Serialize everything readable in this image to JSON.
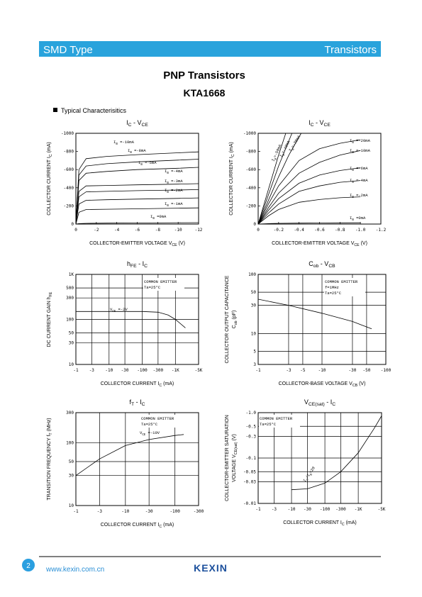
{
  "header": {
    "left": "SMD Type",
    "right": "Transistors"
  },
  "title": "PNP  Transistors",
  "part": "KTA1668",
  "section": "Typical  Characterisitics",
  "charts": [
    {
      "type": "line",
      "title": [
        "I",
        "C",
        "  -  V",
        "CE"
      ],
      "xlabel": [
        [
          "COLLECTOR-EMITTER VOLTAGE V",
          "CE",
          "   (V)"
        ]
      ],
      "ylabel": [
        [
          "COLLECTOR CURRENT I",
          "C",
          "   (mA)"
        ]
      ],
      "xlim": [
        0,
        -12
      ],
      "xticks": [
        0,
        -2,
        -4,
        -6,
        -8,
        -10,
        -12
      ],
      "ylim": [
        0,
        -1000
      ],
      "yticks": [
        0,
        -200,
        -400,
        -600,
        -800,
        -1000
      ],
      "series": [
        {
          "label": [
            "I",
            "B",
            "  =-10mA"
          ],
          "x": [
            0,
            -0.3,
            -1,
            -3,
            -6,
            -10,
            -12
          ],
          "y": [
            0,
            -600,
            -720,
            -745,
            -765,
            -785,
            -795
          ]
        },
        {
          "label": [
            "I",
            "B",
            "  =-8mA"
          ],
          "x": [
            0,
            -0.3,
            -1,
            -3,
            -6,
            -10,
            -12
          ],
          "y": [
            0,
            -540,
            -640,
            -665,
            -685,
            -705,
            -715
          ]
        },
        {
          "label": [
            "I",
            "B",
            "  =-6mA"
          ],
          "x": [
            0,
            -0.3,
            -1,
            -3,
            -6,
            -10,
            -12
          ],
          "y": [
            0,
            -480,
            -560,
            -580,
            -600,
            -615,
            -625
          ]
        },
        {
          "label": [
            "I",
            "B",
            "  =-4mA"
          ],
          "x": [
            0,
            -0.3,
            -1,
            -3,
            -6,
            -10,
            -12
          ],
          "y": [
            0,
            -360,
            -420,
            -425,
            -432,
            -440,
            -445
          ]
        },
        {
          "label": [
            "I",
            "B",
            "  =-3mA"
          ],
          "x": [
            0,
            -0.3,
            -1,
            -3,
            -6,
            -10,
            -12
          ],
          "y": [
            0,
            -300,
            -355,
            -360,
            -368,
            -375,
            -380
          ]
        },
        {
          "label": [
            "I",
            "B",
            "  =-2mA"
          ],
          "x": [
            0,
            -0.3,
            -1,
            -3,
            -6,
            -10,
            -12
          ],
          "y": [
            0,
            -220,
            -262,
            -268,
            -275,
            -283,
            -288
          ]
        },
        {
          "label": [
            "I",
            "B",
            "  =-1mA"
          ],
          "x": [
            0,
            -0.3,
            -1,
            -3,
            -6,
            -10,
            -12
          ],
          "y": [
            0,
            -130,
            -160,
            -163,
            -168,
            -175,
            -178
          ]
        },
        {
          "label": [
            "I",
            "B",
            "  =0mA"
          ],
          "x": [
            0,
            -0.3,
            -1,
            -3,
            -6,
            -10,
            -12
          ],
          "y": [
            0,
            -5,
            -8,
            -10,
            -12,
            -15,
            -16
          ]
        }
      ]
    },
    {
      "type": "line",
      "title": [
        "I",
        "C",
        "  -  V",
        "CE"
      ],
      "xlabel": [
        [
          "COLLECTOR-EMITTER VOLTAGE V",
          "CE",
          "   (V)"
        ]
      ],
      "ylabel": [
        [
          "COLLECTOR CURRENT I",
          "C",
          "   (mA)"
        ]
      ],
      "xlim": [
        0,
        -1.2
      ],
      "xticks": [
        0,
        -0.2,
        -0.4,
        -0.6,
        -0.8,
        {
          "value": -1,
          "label": "-1.0"
        },
        -1.2
      ],
      "ylim": [
        0,
        -1000
      ],
      "yticks": [
        0,
        -200,
        -400,
        -600,
        -800,
        -1000
      ],
      "series": [
        {
          "label": [
            "I",
            "B",
            "=-50mA"
          ],
          "x": [
            0,
            -0.1,
            -0.2,
            -0.27
          ],
          "y": [
            0,
            -380,
            -760,
            -1000
          ]
        },
        {
          "label": [
            "I",
            "B",
            "=-40mA"
          ],
          "x": [
            0,
            -0.1,
            -0.2,
            -0.33
          ],
          "y": [
            0,
            -320,
            -640,
            -1000
          ]
        },
        {
          "label": [
            "I",
            "B",
            "=-30mA"
          ],
          "x": [
            0,
            -0.1,
            -0.2,
            -0.3,
            -0.42
          ],
          "y": [
            0,
            -260,
            -520,
            -760,
            -1000
          ]
        },
        {
          "label": [
            "I",
            "B",
            "  =-20mA"
          ],
          "x": [
            0,
            -0.1,
            -0.2,
            -0.4,
            -0.6,
            -0.8,
            -1.0
          ],
          "y": [
            0,
            -220,
            -420,
            -700,
            -830,
            -890,
            -930
          ]
        },
        {
          "label": [
            "I",
            "B",
            "  =-10mA"
          ],
          "x": [
            0,
            -0.1,
            -0.2,
            -0.4,
            -0.6,
            -0.8,
            -1.0
          ],
          "y": [
            0,
            -180,
            -340,
            -560,
            -680,
            -760,
            -810
          ]
        },
        {
          "label": [
            "I",
            "B",
            "  =-6mA"
          ],
          "x": [
            0,
            -0.1,
            -0.2,
            -0.4,
            -0.6,
            -0.8,
            -1.0
          ],
          "y": [
            0,
            -150,
            -280,
            -450,
            -540,
            -590,
            -620
          ]
        },
        {
          "label": [
            "I",
            "B",
            "  =-4mA"
          ],
          "x": [
            0,
            -0.1,
            -0.2,
            -0.4,
            -0.6,
            -0.8,
            -1.0
          ],
          "y": [
            0,
            -120,
            -220,
            -360,
            -420,
            -460,
            -480
          ]
        },
        {
          "label": [
            "I",
            "B",
            "  =-2mA"
          ],
          "x": [
            0,
            -0.1,
            -0.2,
            -0.4,
            -0.6,
            -0.8,
            -1.0
          ],
          "y": [
            0,
            -90,
            -160,
            -240,
            -270,
            -290,
            -300
          ]
        },
        {
          "label": [
            "I",
            "B",
            "  =0mA"
          ],
          "x": [
            0,
            -0.1,
            -0.2,
            -0.4,
            -0.6,
            -0.8,
            -1.0
          ],
          "y": [
            0,
            -5,
            -8,
            -10,
            -12,
            -13,
            -14
          ]
        }
      ]
    },
    {
      "type": "line",
      "xlog": true,
      "ylog": true,
      "grid": true,
      "title": [
        "h",
        "FE",
        "  -  I",
        "C"
      ],
      "xlabel": [
        [
          "COLLECTOR CURRENT I",
          "C",
          "   (mA)"
        ]
      ],
      "ylabel": [
        [
          "DC CURRENT GAIN h",
          "FE"
        ]
      ],
      "xlim": [
        -1,
        -5000
      ],
      "xticks": [
        -1,
        -3,
        -10,
        -30,
        -100,
        -300,
        {
          "value": -1000,
          "label": "-1K"
        },
        {
          "value": -5000,
          "label": "-5K"
        }
      ],
      "ylim": [
        10,
        1000
      ],
      "yticks": [
        10,
        30,
        50,
        100,
        300,
        500,
        {
          "value": 1000,
          "label": "1K"
        }
      ],
      "notes": [
        "COMMON EMITTER",
        "Ta=25°C"
      ],
      "condition": [
        "V",
        "CE",
        "  =-2V"
      ],
      "series": [
        {
          "x": [
            -1,
            -10,
            -100,
            -300,
            -600,
            -1000,
            -2000
          ],
          "y": [
            150,
            150,
            150,
            145,
            125,
            100,
            65
          ]
        }
      ]
    },
    {
      "type": "line",
      "xlog": true,
      "ylog": true,
      "grid": true,
      "title": [
        "C",
        "ob",
        "  -  V",
        "CB"
      ],
      "xlabel": [
        [
          "COLLECTOR-BASE VOLTAGE V",
          "CB",
          "  (V)"
        ]
      ],
      "ylabel": [
        [
          "COLLECTOR OUTPUT CAPACITANCE"
        ],
        [
          "C",
          "ob",
          "  (pF)"
        ]
      ],
      "xlim": [
        -1,
        -100
      ],
      "xticks": [
        -1,
        -3,
        -5,
        -10,
        -30,
        -50,
        -100
      ],
      "ylim": [
        3,
        100
      ],
      "yticks": [
        3,
        5,
        10,
        30,
        50,
        100
      ],
      "notes": [
        "COMMON EMITTER",
        "f=1MHz",
        "Ta=25°C"
      ],
      "series": [
        {
          "x": [
            -1,
            -3,
            -10,
            -30,
            -60
          ],
          "y": [
            38,
            30,
            22,
            16,
            12
          ]
        }
      ]
    },
    {
      "type": "line",
      "xlog": true,
      "ylog": true,
      "grid": true,
      "title": [
        "f",
        "T",
        "  -  I",
        "C"
      ],
      "xlabel": [
        [
          "COLLECTOR CURRENT I",
          "C",
          "   (mA)"
        ]
      ],
      "ylabel": [
        [
          "TRANSITION FREQUENCY f",
          "T",
          "  (MHz)"
        ]
      ],
      "xlim": [
        -1,
        -300
      ],
      "xticks": [
        -1,
        -3,
        -10,
        -30,
        -100,
        -300
      ],
      "ylim": [
        10,
        300
      ],
      "yticks": [
        10,
        30,
        50,
        100,
        300
      ],
      "notes": [
        "COMMON EMITTER",
        "Ta=25°C"
      ],
      "condition": [
        "V",
        "CE",
        "  =-10V"
      ],
      "series": [
        {
          "x": [
            -1,
            -3,
            -10,
            -30,
            -100,
            -150
          ],
          "y": [
            30,
            55,
            90,
            112,
            130,
            135
          ]
        }
      ]
    },
    {
      "type": "line",
      "xlog": true,
      "ylog": true,
      "grid": true,
      "title": [
        "V",
        "CE(sat)",
        "  -  I",
        "C"
      ],
      "xlabel": [
        [
          "COLLECTOR CURRENT I",
          "C",
          "   (mA)"
        ]
      ],
      "ylabel": [
        [
          "COLLECTOR-EMITTER SATURATION"
        ],
        [
          "VOLTAGE V",
          "CE(sat)",
          "  (V)"
        ]
      ],
      "xlim": [
        -1,
        -5000
      ],
      "xticks": [
        -1,
        -3,
        -10,
        -30,
        -100,
        -300,
        {
          "value": -1000,
          "label": "-1K"
        },
        {
          "value": -5000,
          "label": "-5K"
        }
      ],
      "ylim": [
        -0.01,
        -1
      ],
      "yticks": [
        -0.01,
        -0.03,
        -0.05,
        -0.1,
        -0.3,
        -0.5,
        {
          "value": -1,
          "label": "-1.0"
        }
      ],
      "notes": [
        "COMMON EMITTER",
        "Ta=25°C"
      ],
      "condition": [
        "I",
        "C",
        "/I",
        "B",
        "=20"
      ],
      "series": [
        {
          "x": [
            -10,
            -30,
            -100,
            -300,
            -1000,
            -3000,
            -5000
          ],
          "y": [
            -0.02,
            -0.021,
            -0.028,
            -0.05,
            -0.13,
            -0.45,
            -0.85
          ]
        }
      ]
    }
  ],
  "footer": {
    "page": "2",
    "url": "www.kexin.com.cn",
    "brand": "KEXIN"
  }
}
